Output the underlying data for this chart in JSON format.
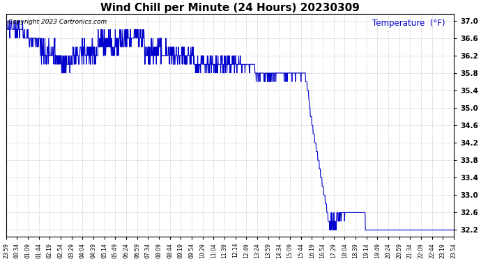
{
  "title": "Wind Chill per Minute (24 Hours) 20230309",
  "ylabel_text": "Temperature  (°F)",
  "copyright_text": "Copyright 2023 Cartronics.com",
  "line_color": "#0000cc",
  "ylabel_color": "#0000cc",
  "background_color": "#ffffff",
  "grid_color": "#bbbbbb",
  "ylim": [
    32.05,
    37.15
  ],
  "yticks": [
    32.2,
    32.6,
    33.0,
    33.4,
    33.8,
    34.2,
    34.6,
    35.0,
    35.4,
    35.8,
    36.2,
    36.6,
    37.0
  ],
  "xtick_labels": [
    "23:59",
    "00:34",
    "01:09",
    "01:44",
    "02:19",
    "02:54",
    "03:29",
    "04:04",
    "04:39",
    "05:14",
    "05:49",
    "06:24",
    "06:59",
    "07:34",
    "08:09",
    "08:44",
    "09:19",
    "09:54",
    "10:29",
    "11:04",
    "11:39",
    "12:14",
    "12:49",
    "13:24",
    "13:59",
    "14:34",
    "15:09",
    "15:44",
    "16:19",
    "16:54",
    "17:29",
    "18:04",
    "18:39",
    "19:14",
    "19:49",
    "20:24",
    "20:59",
    "21:34",
    "22:09",
    "22:44",
    "23:19",
    "23:54"
  ],
  "num_points": 1440,
  "title_fontsize": 11,
  "tick_fontsize": 7.5,
  "xtick_fontsize": 5.5,
  "copyright_fontsize": 6.5,
  "ylabel_fontsize": 8.5
}
